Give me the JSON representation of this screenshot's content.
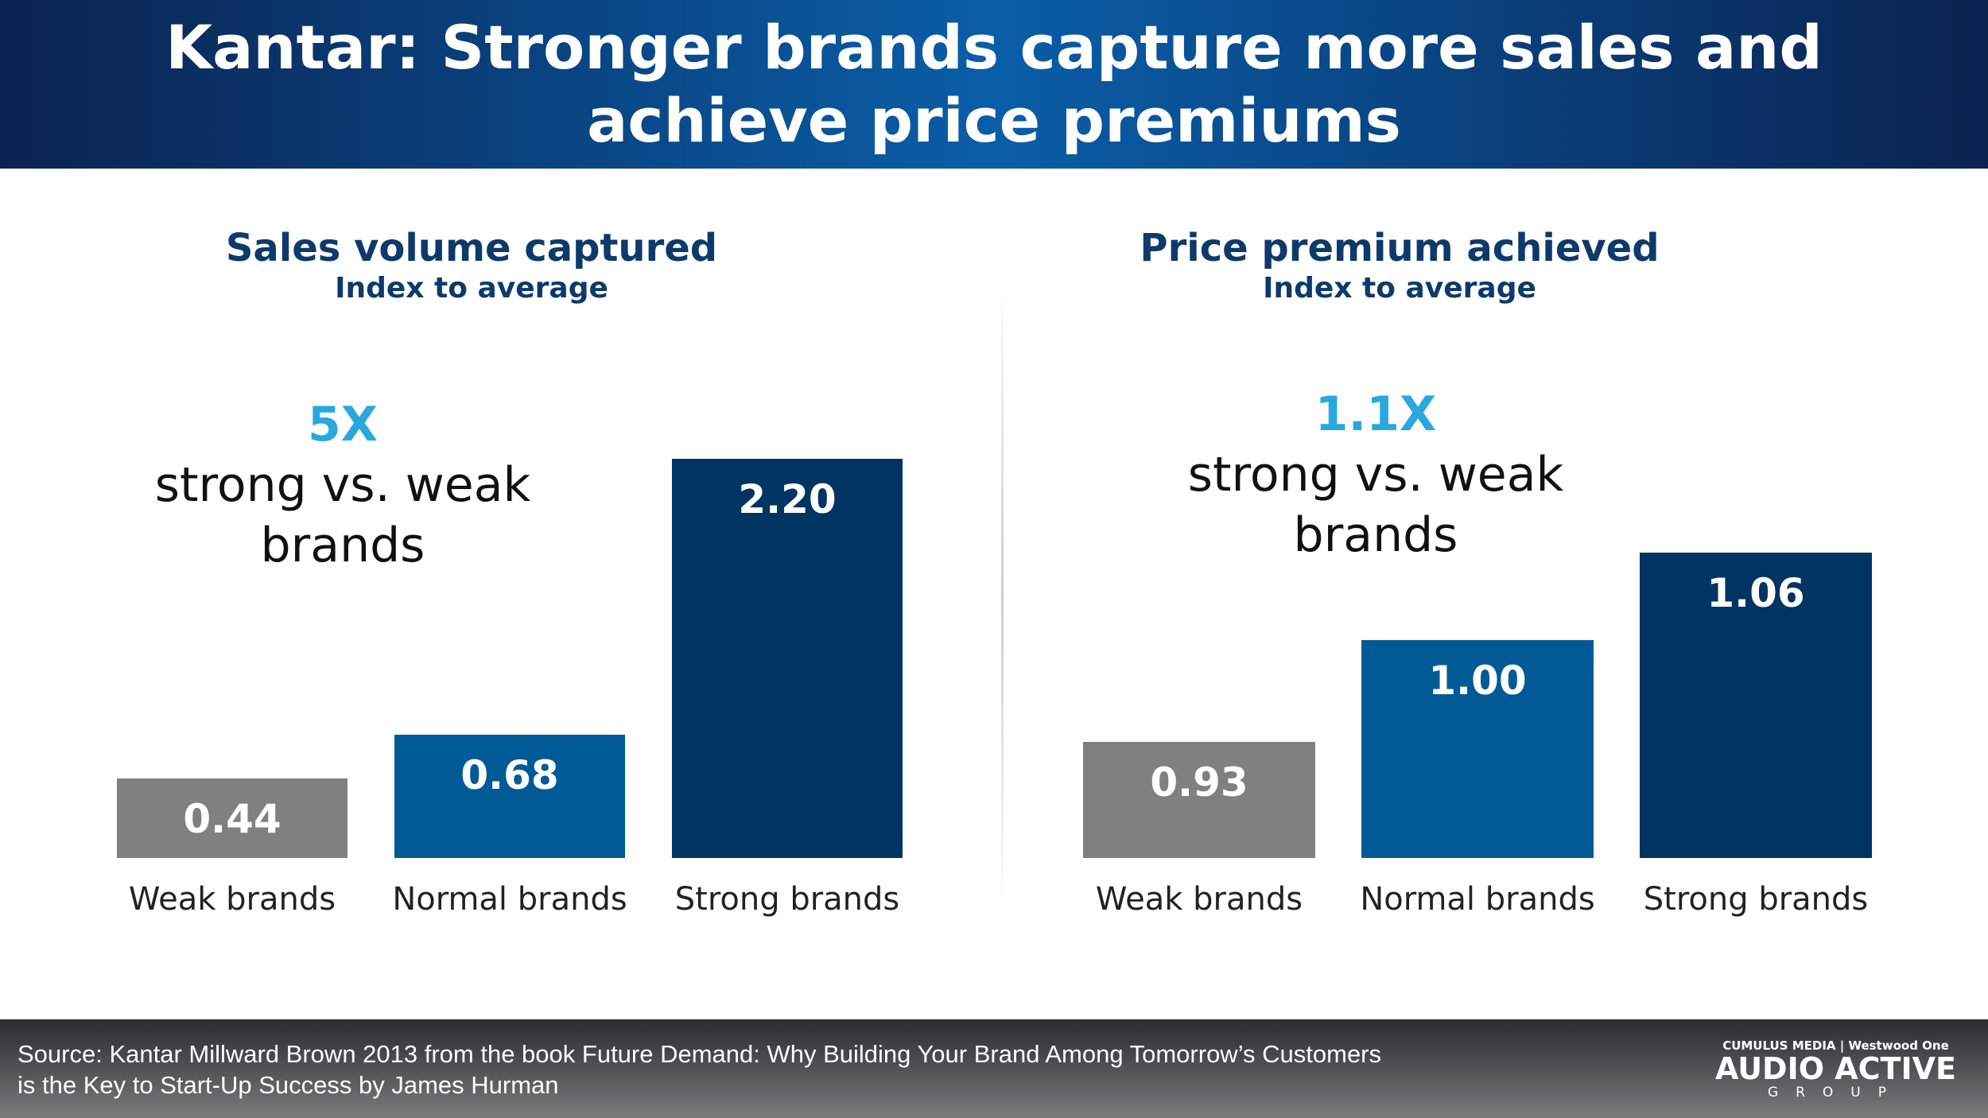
{
  "title": {
    "line1": "Kantar: Stronger brands capture more sales and",
    "line2": "achieve price premiums"
  },
  "chart_data": [
    {
      "type": "bar",
      "title": "Sales volume captured",
      "subtitle": "Index to average",
      "annotation": {
        "multiplier": "5X",
        "line1": "strong vs. weak",
        "line2": "brands"
      },
      "categories": [
        "Weak brands",
        "Normal brands",
        "Strong brands"
      ],
      "values": [
        0.44,
        0.68,
        2.2
      ],
      "labels": [
        "0.44",
        "0.68",
        "2.20"
      ],
      "colors": [
        "#808080",
        "#005a96",
        "#003462"
      ],
      "ylim": [
        0,
        2.2
      ],
      "grid": false
    },
    {
      "type": "bar",
      "title": "Price premium achieved",
      "subtitle": "Index to average",
      "annotation": {
        "multiplier": "1.1X",
        "line1": "strong vs. weak",
        "line2": "brands"
      },
      "categories": [
        "Weak brands",
        "Normal brands",
        "Strong brands"
      ],
      "values": [
        0.93,
        1.0,
        1.06
      ],
      "labels": [
        "0.93",
        "1.00",
        "1.06"
      ],
      "colors": [
        "#808080",
        "#005a96",
        "#003462"
      ],
      "ylim": [
        0.85,
        1.06
      ],
      "grid": false
    }
  ],
  "footer": {
    "source_line1": "Source: Kantar Millward Brown 2013 from the book Future Demand: Why Building Your Brand Among Tomorrow’s Customers",
    "source_line2": "is the Key to Start-Up Success by James Hurman",
    "logo": {
      "top": "CUMULUS MEDIA | Westwood One",
      "main": "AUDIO ACTIVE",
      "sub": "GROUP"
    }
  }
}
